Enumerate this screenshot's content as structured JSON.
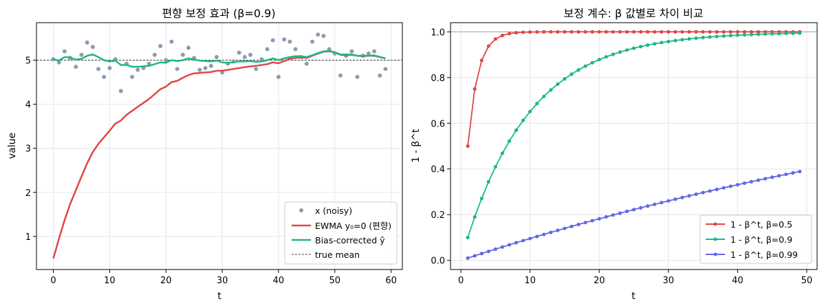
{
  "chart_data": [
    {
      "type": "line",
      "title": "편향 보정 효과 (β=0.9)",
      "xlabel": "t",
      "ylabel": "value",
      "xlim": [
        -3,
        62
      ],
      "ylim": [
        0.25,
        5.85
      ],
      "xticks": [
        0,
        10,
        20,
        30,
        40,
        50,
        60
      ],
      "yticks": [
        1,
        2,
        3,
        4,
        5
      ],
      "grid": true,
      "legend_position": "lower-right",
      "true_mean": 5,
      "series": [
        {
          "name": "x (noisy)",
          "kind": "scatter",
          "color": "#8c9cb0",
          "x": [
            0,
            1,
            2,
            3,
            4,
            5,
            6,
            7,
            8,
            9,
            10,
            11,
            12,
            13,
            14,
            15,
            16,
            17,
            18,
            19,
            20,
            21,
            22,
            23,
            24,
            25,
            26,
            27,
            28,
            29,
            30,
            31,
            32,
            33,
            34,
            35,
            36,
            37,
            38,
            39,
            40,
            41,
            42,
            43,
            44,
            45,
            46,
            47,
            48,
            49,
            50,
            51,
            52,
            53,
            54,
            55,
            56,
            57,
            58,
            59
          ],
          "y": [
            5.02,
            4.95,
            5.2,
            5.05,
            4.85,
            5.12,
            5.4,
            5.3,
            4.8,
            4.62,
            4.82,
            5.02,
            4.3,
            4.92,
            4.62,
            4.78,
            4.82,
            4.92,
            5.12,
            5.32,
            5.0,
            5.42,
            4.8,
            5.12,
            5.28,
            5.05,
            4.78,
            4.82,
            4.87,
            5.07,
            4.72,
            4.92,
            4.97,
            5.17,
            5.07,
            5.12,
            4.8,
            5.02,
            5.25,
            5.45,
            4.62,
            5.47,
            5.42,
            5.25,
            5.07,
            4.92,
            5.42,
            5.58,
            5.55,
            5.25,
            5.15,
            4.65,
            5.1,
            5.2,
            4.62,
            5.1,
            5.15,
            5.2,
            4.65,
            4.8
          ]
        },
        {
          "name": "EWMA y₀=0 (편향)",
          "kind": "line",
          "color": "#e04646",
          "x": [
            0,
            1,
            2,
            3,
            4,
            5,
            6,
            7,
            8,
            9,
            10,
            11,
            12,
            13,
            14,
            15,
            16,
            17,
            18,
            19,
            20,
            21,
            22,
            23,
            24,
            25,
            26,
            27,
            28,
            29,
            30,
            31,
            32,
            33,
            34,
            35,
            36,
            37,
            38,
            39,
            40,
            41,
            42,
            43,
            44,
            45,
            46,
            47,
            48,
            49,
            50,
            51,
            52,
            53,
            54,
            55,
            56,
            57,
            58,
            59
          ],
          "y": [
            0.5,
            0.95,
            1.37,
            1.74,
            2.05,
            2.36,
            2.66,
            2.91,
            3.1,
            3.25,
            3.4,
            3.56,
            3.63,
            3.76,
            3.85,
            3.94,
            4.03,
            4.12,
            4.23,
            4.34,
            4.4,
            4.5,
            4.53,
            4.6,
            4.66,
            4.7,
            4.71,
            4.72,
            4.73,
            4.76,
            4.76,
            4.78,
            4.8,
            4.82,
            4.84,
            4.86,
            4.87,
            4.89,
            4.91,
            4.95,
            4.93,
            4.98,
            5.03,
            5.05,
            5.06,
            5.05,
            5.1,
            5.15,
            5.19,
            5.2,
            5.18,
            5.12,
            5.11,
            5.12,
            5.1,
            5.09,
            5.1,
            5.1,
            5.07,
            5.04
          ]
        },
        {
          "name": "Bias-corrected ŷ",
          "kind": "line",
          "color": "#1db884",
          "x": [
            0,
            1,
            2,
            3,
            4,
            5,
            6,
            7,
            8,
            9,
            10,
            11,
            12,
            13,
            14,
            15,
            16,
            17,
            18,
            19,
            20,
            21,
            22,
            23,
            24,
            25,
            26,
            27,
            28,
            29,
            30,
            31,
            32,
            33,
            34,
            35,
            36,
            37,
            38,
            39,
            40,
            41,
            42,
            43,
            44,
            45,
            46,
            47,
            48,
            49,
            50,
            51,
            52,
            53,
            54,
            55,
            56,
            57,
            58,
            59
          ],
          "y": [
            5.02,
            4.99,
            5.07,
            5.06,
            5.01,
            5.03,
            5.1,
            5.13,
            5.07,
            5.0,
            4.97,
            4.99,
            4.89,
            4.89,
            4.85,
            4.85,
            4.86,
            4.87,
            4.91,
            4.95,
            4.94,
            5.0,
            4.98,
            5.0,
            5.04,
            5.01,
            4.99,
            4.98,
            4.97,
            4.99,
            4.95,
            4.94,
            4.95,
            4.97,
            4.97,
            4.98,
            4.96,
            4.97,
            5.0,
            5.04,
            5.0,
            5.04,
            5.07,
            5.09,
            5.09,
            5.07,
            5.11,
            5.16,
            5.2,
            5.21,
            5.18,
            5.13,
            5.13,
            5.13,
            5.1,
            5.1,
            5.1,
            5.11,
            5.07,
            5.04
          ]
        }
      ]
    },
    {
      "type": "line",
      "title": "보정 계수: β 값별로 차이 비교",
      "xlabel": "t",
      "ylabel": "1 - β^t",
      "xlim": [
        -1.5,
        51.5
      ],
      "ylim": [
        -0.04,
        1.04
      ],
      "xticks": [
        0,
        10,
        20,
        30,
        40,
        50
      ],
      "yticks": [
        0.0,
        0.2,
        0.4,
        0.6,
        0.8,
        1.0
      ],
      "grid": true,
      "reference_line": 1.0,
      "legend_position": "lower-right",
      "series": [
        {
          "name": "1 - β^t,  β=0.5",
          "beta": 0.5,
          "color": "#e04646",
          "t_start": 1,
          "t_end": 49
        },
        {
          "name": "1 - β^t,  β=0.9",
          "beta": 0.9,
          "color": "#1db884",
          "t_start": 1,
          "t_end": 49
        },
        {
          "name": "1 - β^t,  β=0.99",
          "beta": 0.99,
          "color": "#6366e8",
          "t_start": 1,
          "t_end": 49
        }
      ]
    }
  ],
  "legend_extra": {
    "true_mean_label": "true mean"
  }
}
